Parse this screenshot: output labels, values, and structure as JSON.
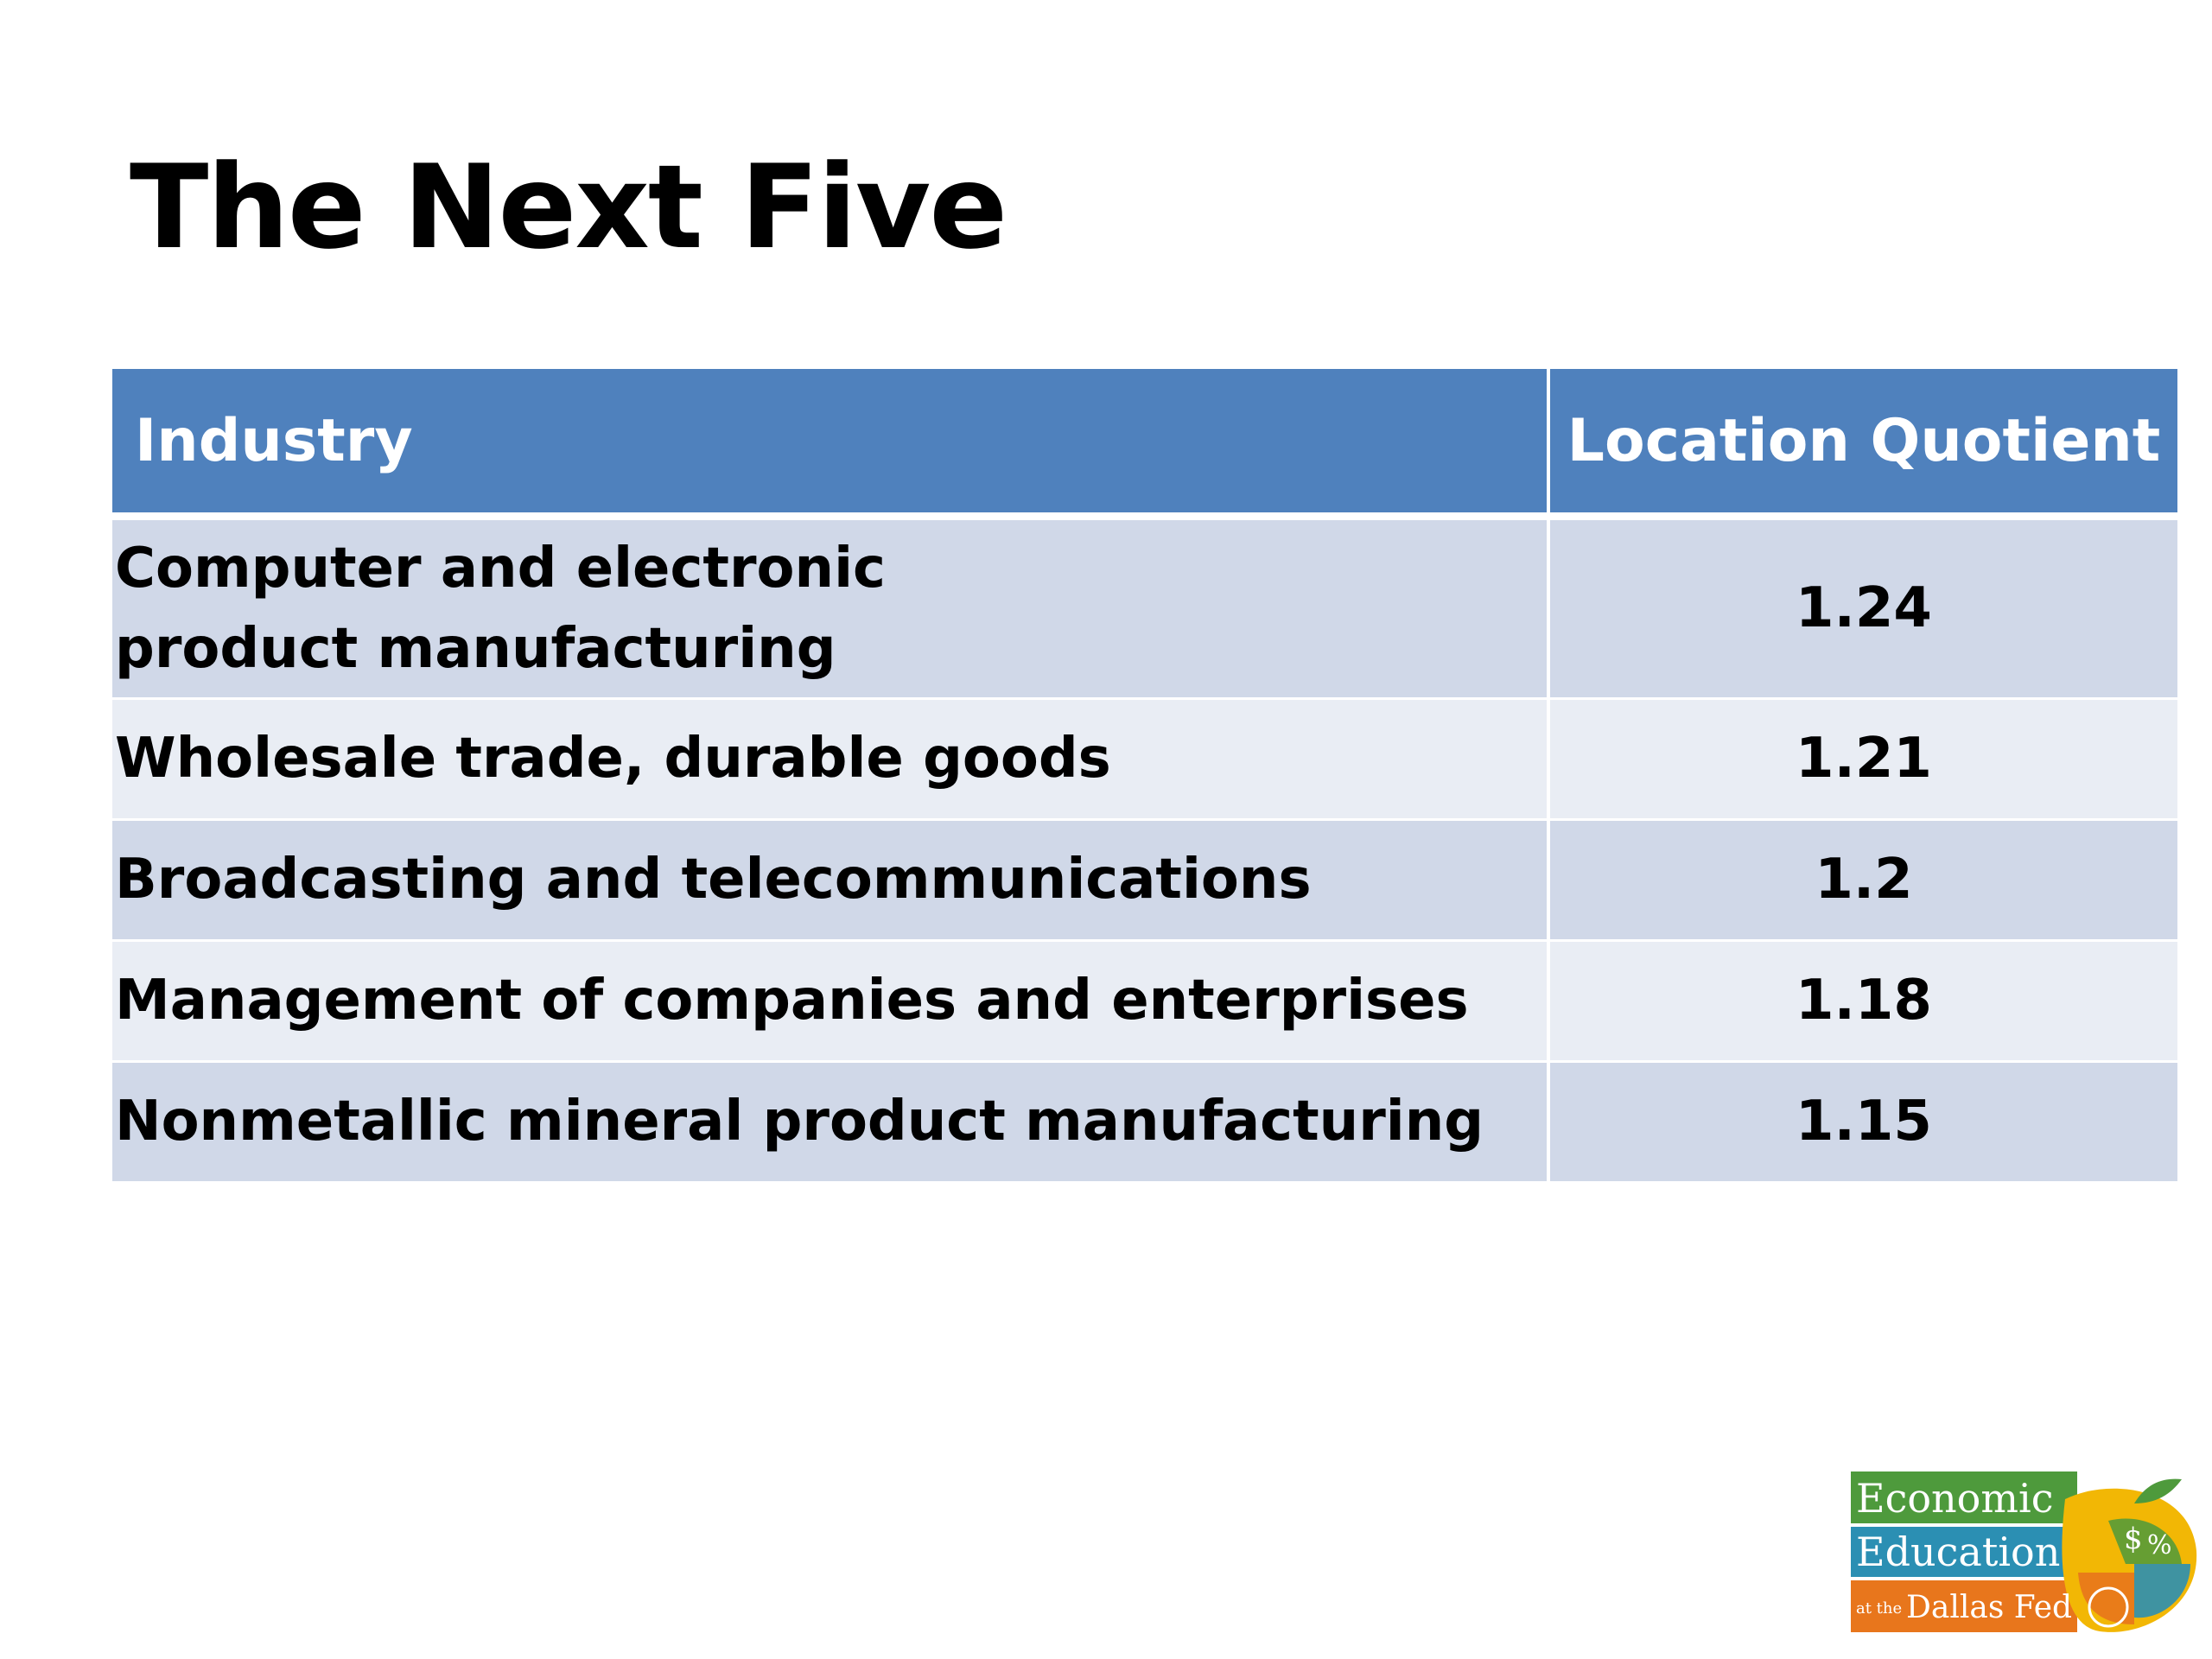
{
  "slide": {
    "title": "The Next Five"
  },
  "table": {
    "headers": [
      "Industry",
      "Location Quotient"
    ],
    "rows": [
      {
        "industry": "Computer and electronic product manufacturing",
        "lq": "1.24"
      },
      {
        "industry": "Wholesale trade, durable goods",
        "lq": "1.21"
      },
      {
        "industry": "Broadcasting and telecommunications",
        "lq": "1.2"
      },
      {
        "industry": "Management of companies and enterprises",
        "lq": "1.18"
      },
      {
        "industry": "Nonmetallic mineral product manufacturing",
        "lq": "1.15"
      }
    ]
  },
  "logo": {
    "line1": "Economic",
    "line2": "Education",
    "line3_prefix": "at the",
    "line3": "Dallas Fed",
    "colors": {
      "green": "#4e9a3c",
      "teal": "#2b8fb3",
      "orange": "#e8761c",
      "yellow": "#f2b705"
    }
  },
  "colors": {
    "header_bg": "#4f81bd",
    "row_odd": "#d0d8e8",
    "row_even": "#e9edf4"
  }
}
